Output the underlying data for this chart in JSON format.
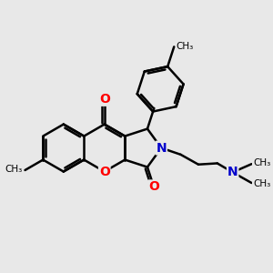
{
  "bg_color": "#e8e8e8",
  "bond_color": "#000000",
  "bond_width": 1.8,
  "atom_colors": {
    "O": "#ff0000",
    "N": "#0000cc"
  },
  "xlim": [
    0.0,
    6.5
  ],
  "ylim": [
    0.5,
    6.0
  ],
  "figsize": [
    3.0,
    3.0
  ],
  "dpi": 100
}
